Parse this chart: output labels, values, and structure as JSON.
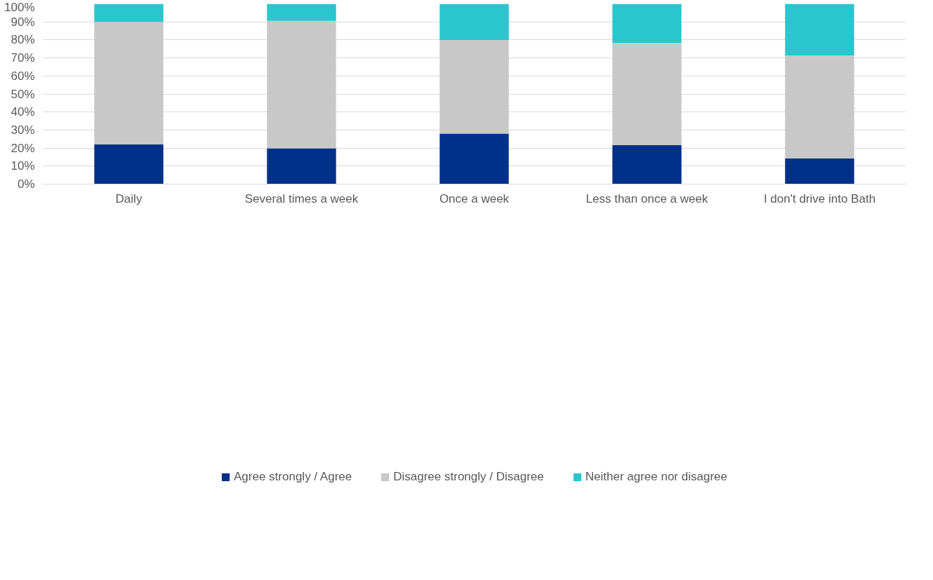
{
  "chart_data": {
    "type": "bar",
    "stacked": true,
    "categories": [
      "Daily",
      "Several times a week",
      "Once a week",
      "Less than once a week",
      "I don't drive into Bath"
    ],
    "series": [
      {
        "name": "Agree strongly / Agree",
        "color": "#003087",
        "values": [
          22,
          19.8,
          28,
          21.6,
          14.3
        ]
      },
      {
        "name": "Disagree strongly / Disagree",
        "color": "#c8c8c8",
        "values": [
          68,
          70.8,
          52,
          56.7,
          57.1
        ]
      },
      {
        "name": "Neither agree nor disagree",
        "color": "#2bc5ce",
        "values": [
          10,
          9.4,
          20,
          21.7,
          28.6
        ]
      }
    ],
    "ylim": [
      0,
      100
    ],
    "yticks": [
      {
        "value": 0,
        "label": "0%"
      },
      {
        "value": 10,
        "label": "10%"
      },
      {
        "value": 20,
        "label": "20%"
      },
      {
        "value": 30,
        "label": "30%"
      },
      {
        "value": 40,
        "label": "40%"
      },
      {
        "value": 50,
        "label": "50%"
      },
      {
        "value": 60,
        "label": "60%"
      },
      {
        "value": 70,
        "label": "70%"
      },
      {
        "value": 80,
        "label": "80%"
      },
      {
        "value": 90,
        "label": "90%"
      },
      {
        "value": 100,
        "label": "100%"
      }
    ],
    "grid": "y",
    "legend": "bottom"
  }
}
